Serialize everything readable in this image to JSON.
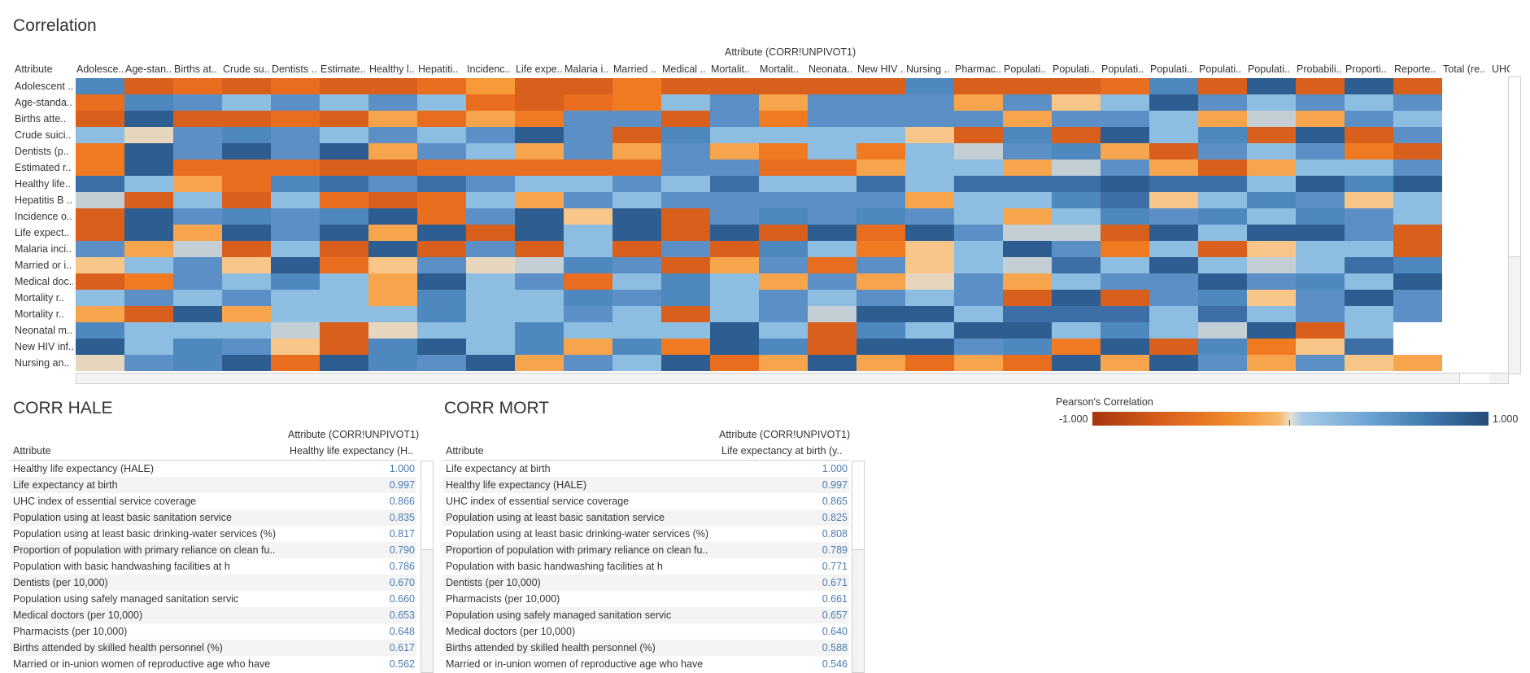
{
  "heatmap": {
    "title": "Correlation",
    "column_header": "Attribute (CORR!UNPIVOT1)",
    "row_header": "Attribute",
    "columns": [
      "Adolesce..",
      "Age-stan..",
      "Births at..",
      "Crude su..",
      "Dentists ..",
      "Estimate..",
      "Healthy l..",
      "Hepatiti..",
      "Incidenc..",
      "Life expe..",
      "Malaria i..",
      "Married ..",
      "Medical ..",
      "Mortalit..",
      "Mortalit..",
      "Neonata..",
      "New HIV ..",
      "Nursing ..",
      "Pharmac..",
      "Populati..",
      "Populati..",
      "Populati..",
      "Populati..",
      "Populati..",
      "Populati..",
      "Probabili..",
      "Proporti..",
      "Reporte..",
      "Total (re..",
      "UHC"
    ],
    "rows": [
      "Adolescent ..",
      "Age-standa..",
      "Births atte..",
      "Crude suici..",
      "Dentists (p..",
      "Estimated r..",
      "Healthy life..",
      "Hepatitis B ..",
      "Incidence o..",
      "Life expect..",
      "Malaria inci..",
      "Married or i..",
      "Medical doc..",
      "Mortality r..",
      "Mortality r..",
      "Neonatal m..",
      "New HIV inf..",
      "Nursing an.."
    ],
    "cells": [
      "A2525225422322222A2225A2B2B2",
      "5A787878525387677767E8B78787",
      "2B2252656377273777767786D678",
      "8C7A78787B72A8888E2A2B8A2B27",
      "3B7B7B678676763838D7A6278732",
      "3B555225555577556886D7626887",
      "9865A9797887898898999B998BAB",
      "D2828525867877777688A9E8A7E8",
      "2B7A7AB57BEB27A7A7868A7A8A78",
      "2B6B7B6B2B8B2B2B5B7DD2B8BB72",
      "76D282B2728272A83E8B7382E882",
      "E87EB5E7CDA726757E8D98B8D89A",
      "2378A86B8758A8676C76877B7A8B",
      "8787886A88A7A8787872B27AE7B7",
      "62B6888A8878287DBB8999898787",
      "A888D2C88A888B82A8BB8A8DB28",
      "B8A7E2AB8A6A3BA2BB7A3B2A3E9",
      "C7AB5BA7B678B56B6565B6B767E6"
    ]
  },
  "hale": {
    "title": "CORR HALE",
    "column_header": "Attribute (CORR!UNPIVOT1)",
    "row_header": "Attribute",
    "value_header": "Healthy life expectancy (H..",
    "rows": [
      {
        "label": "Healthy life expectancy (HALE)",
        "value": "1.000"
      },
      {
        "label": "Life expectancy at birth",
        "value": "0.997"
      },
      {
        "label": "UHC index of essential service coverage",
        "value": "0.866"
      },
      {
        "label": "Population using at least basic sanitation service",
        "value": "0.835"
      },
      {
        "label": "Population using at least basic drinking-water services (%)",
        "value": "0.817"
      },
      {
        "label": "Proportion of population with primary reliance on clean fu..",
        "value": "0.790"
      },
      {
        "label": "Population with basic handwashing facilities at h",
        "value": "0.786"
      },
      {
        "label": "Dentists (per 10,000)",
        "value": "0.670"
      },
      {
        "label": "Population using safely managed sanitation servic",
        "value": "0.660"
      },
      {
        "label": "Medical doctors (per 10,000)",
        "value": "0.653"
      },
      {
        "label": "Pharmacists  (per 10,000)",
        "value": "0.648"
      },
      {
        "label": "Births attended by skilled health personnel (%)",
        "value": "0.617"
      },
      {
        "label": "Married or in-union women of reproductive age who have",
        "value": "0.562"
      }
    ]
  },
  "mort": {
    "title": "CORR MORT",
    "column_header": "Attribute (CORR!UNPIVOT1)",
    "row_header": "Attribute",
    "value_header": "Life expectancy at birth (y..",
    "rows": [
      {
        "label": "Life expectancy at birth",
        "value": "1.000"
      },
      {
        "label": "Healthy life expectancy (HALE)",
        "value": "0.997"
      },
      {
        "label": "UHC index of essential service coverage",
        "value": "0.865"
      },
      {
        "label": "Population using at least basic sanitation service",
        "value": "0.825"
      },
      {
        "label": "Population using at least basic drinking-water services (%)",
        "value": "0.808"
      },
      {
        "label": "Proportion of population with primary reliance on clean fu..",
        "value": "0.789"
      },
      {
        "label": "Population with basic handwashing facilities at h",
        "value": "0.771"
      },
      {
        "label": "Dentists (per 10,000)",
        "value": "0.671"
      },
      {
        "label": "Pharmacists  (per 10,000)",
        "value": "0.661"
      },
      {
        "label": "Population using safely managed sanitation servic",
        "value": "0.657"
      },
      {
        "label": "Medical doctors (per 10,000)",
        "value": "0.640"
      },
      {
        "label": "Births attended by skilled health personnel (%)",
        "value": "0.588"
      },
      {
        "label": "Married or in-union women of reproductive age who have",
        "value": "0.546"
      }
    ]
  },
  "legend": {
    "title": "Pearson's Correlation",
    "min_label": "-1.000",
    "max_label": "1.000"
  },
  "colors": {
    "palette": {
      "1": "#a5360e",
      "2": "#d9601c",
      "3": "#ef7a22",
      "4": "#f89a3a",
      "5": "#e86d1f",
      "6": "#f7a54c",
      "7": "#5b8fc6",
      "8": "#8dbde0",
      "9": "#3d6fa6",
      "A": "#4f87bf",
      "B": "#2d5d91",
      "C": "#e6d6bd",
      "D": "#c3ced5",
      "E": "#f9c68a",
      "F": "#ffffff"
    },
    "value_text": "#4a7bb0",
    "alt_row": "#f4f4f4"
  }
}
